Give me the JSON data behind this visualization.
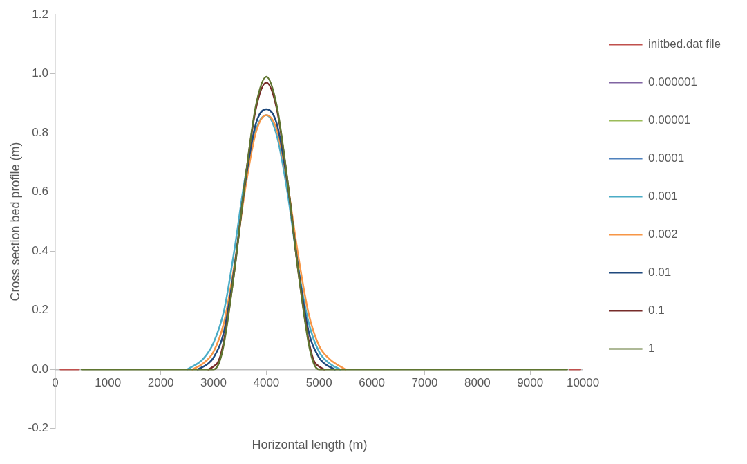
{
  "chart_data": {
    "type": "line",
    "xlabel": "Horizontal length (m)",
    "ylabel": "Cross section bed profile (m)",
    "xlim": [
      0,
      10000
    ],
    "xticks": [
      0,
      1000,
      2000,
      3000,
      4000,
      5000,
      6000,
      7000,
      8000,
      9000,
      10000
    ],
    "ylim": [
      -0.2,
      1.2
    ],
    "yticks": [
      {
        "value": -0.2,
        "label": "-0.2"
      },
      {
        "value": 0,
        "label": "0.0"
      },
      {
        "value": 0.2,
        "label": "0.2"
      },
      {
        "value": 0.4,
        "label": "0.4"
      },
      {
        "value": 0.6,
        "label": "0.6"
      },
      {
        "value": 0.8,
        "label": "0.8"
      },
      {
        "value": 1,
        "label": "1.0"
      },
      {
        "value": 1.2,
        "label": "1.2"
      }
    ],
    "grid": false,
    "legend": "top right",
    "marker": "none",
    "line_style": "solid",
    "series": [
      {
        "name": "initbed.dat file",
        "color": "#c0504d",
        "x": [
          100,
          450,
          4000,
          9750,
          9950
        ],
        "values": [
          0,
          0,
          null,
          0,
          0
        ]
      },
      {
        "name": "0.000001",
        "color": "#8064a2"
      },
      {
        "name": "0.00001",
        "color": "#9bbb59"
      },
      {
        "name": "0.0001",
        "color": "#4f81bd"
      },
      {
        "name": "0.001",
        "color": "#4bacc6",
        "x": [
          2500,
          2800,
          3000,
          3200,
          3400,
          3600,
          3800,
          4000,
          4200,
          4400,
          4600,
          4800,
          5000,
          5200,
          5400
        ],
        "values": [
          0,
          0.035,
          0.09,
          0.2,
          0.41,
          0.65,
          0.81,
          0.86,
          0.79,
          0.6,
          0.35,
          0.16,
          0.06,
          0.02,
          0
        ]
      },
      {
        "name": "0.002",
        "color": "#f79646",
        "x": [
          2600,
          2800,
          3000,
          3200,
          3400,
          3600,
          3800,
          4000,
          4200,
          4400,
          4600,
          4800,
          5000,
          5200,
          5500
        ],
        "values": [
          0,
          0.02,
          0.06,
          0.16,
          0.36,
          0.61,
          0.8,
          0.86,
          0.81,
          0.63,
          0.39,
          0.19,
          0.08,
          0.035,
          0
        ]
      },
      {
        "name": "0.01",
        "color": "#1f497d",
        "x": [
          2700,
          2900,
          3000,
          3200,
          3400,
          3600,
          3800,
          4000,
          4200,
          4400,
          4600,
          4800,
          5000,
          5100,
          5300
        ],
        "values": [
          0,
          0.02,
          0.04,
          0.13,
          0.35,
          0.63,
          0.83,
          0.88,
          0.83,
          0.63,
          0.35,
          0.13,
          0.04,
          0.02,
          0
        ]
      },
      {
        "name": "0.1",
        "color": "#772c2a",
        "x": [
          2900,
          3000,
          3100,
          3200,
          3400,
          3600,
          3800,
          4000,
          4200,
          4400,
          4600,
          4800,
          4900,
          5000,
          5100
        ],
        "values": [
          0,
          0.01,
          0.03,
          0.1,
          0.34,
          0.64,
          0.88,
          0.97,
          0.88,
          0.64,
          0.34,
          0.1,
          0.03,
          0.01,
          0
        ]
      },
      {
        "name": "1",
        "color": "#5f7530",
        "x": [
          500,
          1000,
          2000,
          2900,
          3000,
          3100,
          3200,
          3400,
          3600,
          3800,
          4000,
          4200,
          4400,
          4600,
          4800,
          4900,
          5000,
          5100,
          6000,
          8000,
          9700
        ],
        "values": [
          0,
          0,
          0,
          0,
          0,
          0.02,
          0.09,
          0.34,
          0.64,
          0.89,
          0.99,
          0.89,
          0.64,
          0.34,
          0.09,
          0.02,
          0,
          0,
          0,
          0,
          0
        ]
      }
    ]
  }
}
